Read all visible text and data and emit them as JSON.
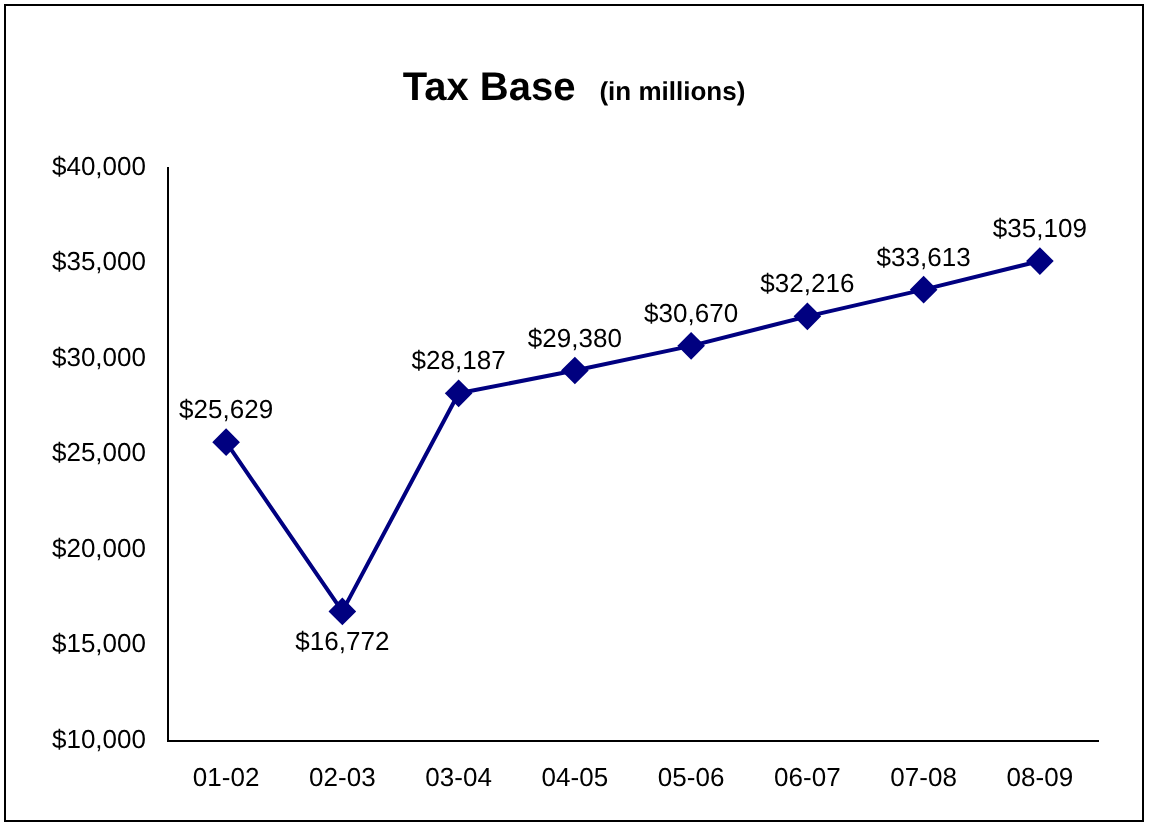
{
  "chart_data": {
    "type": "line",
    "title": "Tax Base",
    "subtitle": "(in millions)",
    "categories": [
      "01-02",
      "02-03",
      "03-04",
      "04-05",
      "05-06",
      "06-07",
      "07-08",
      "08-09"
    ],
    "series": [
      {
        "color": "#000080",
        "values": [
          25629,
          16772,
          28187,
          29380,
          30670,
          32216,
          33613,
          35109
        ],
        "value_labels": [
          "$25,629",
          "$16,772",
          "$28,187",
          "$29,380",
          "$30,670",
          "$32,216",
          "$33,613",
          "$35,109"
        ]
      }
    ],
    "ylim": [
      10000,
      40000
    ],
    "yticks": [
      {
        "value": 10000,
        "label": "$10,000"
      },
      {
        "value": 15000,
        "label": "$15,000"
      },
      {
        "value": 20000,
        "label": "$20,000"
      },
      {
        "value": 25000,
        "label": "$25,000"
      },
      {
        "value": 30000,
        "label": "$30,000"
      },
      {
        "value": 35000,
        "label": "$35,000"
      },
      {
        "value": 40000,
        "label": "$40,000"
      }
    ],
    "grid": false,
    "legend": false,
    "marker": "diamond",
    "line_style": "solid"
  }
}
